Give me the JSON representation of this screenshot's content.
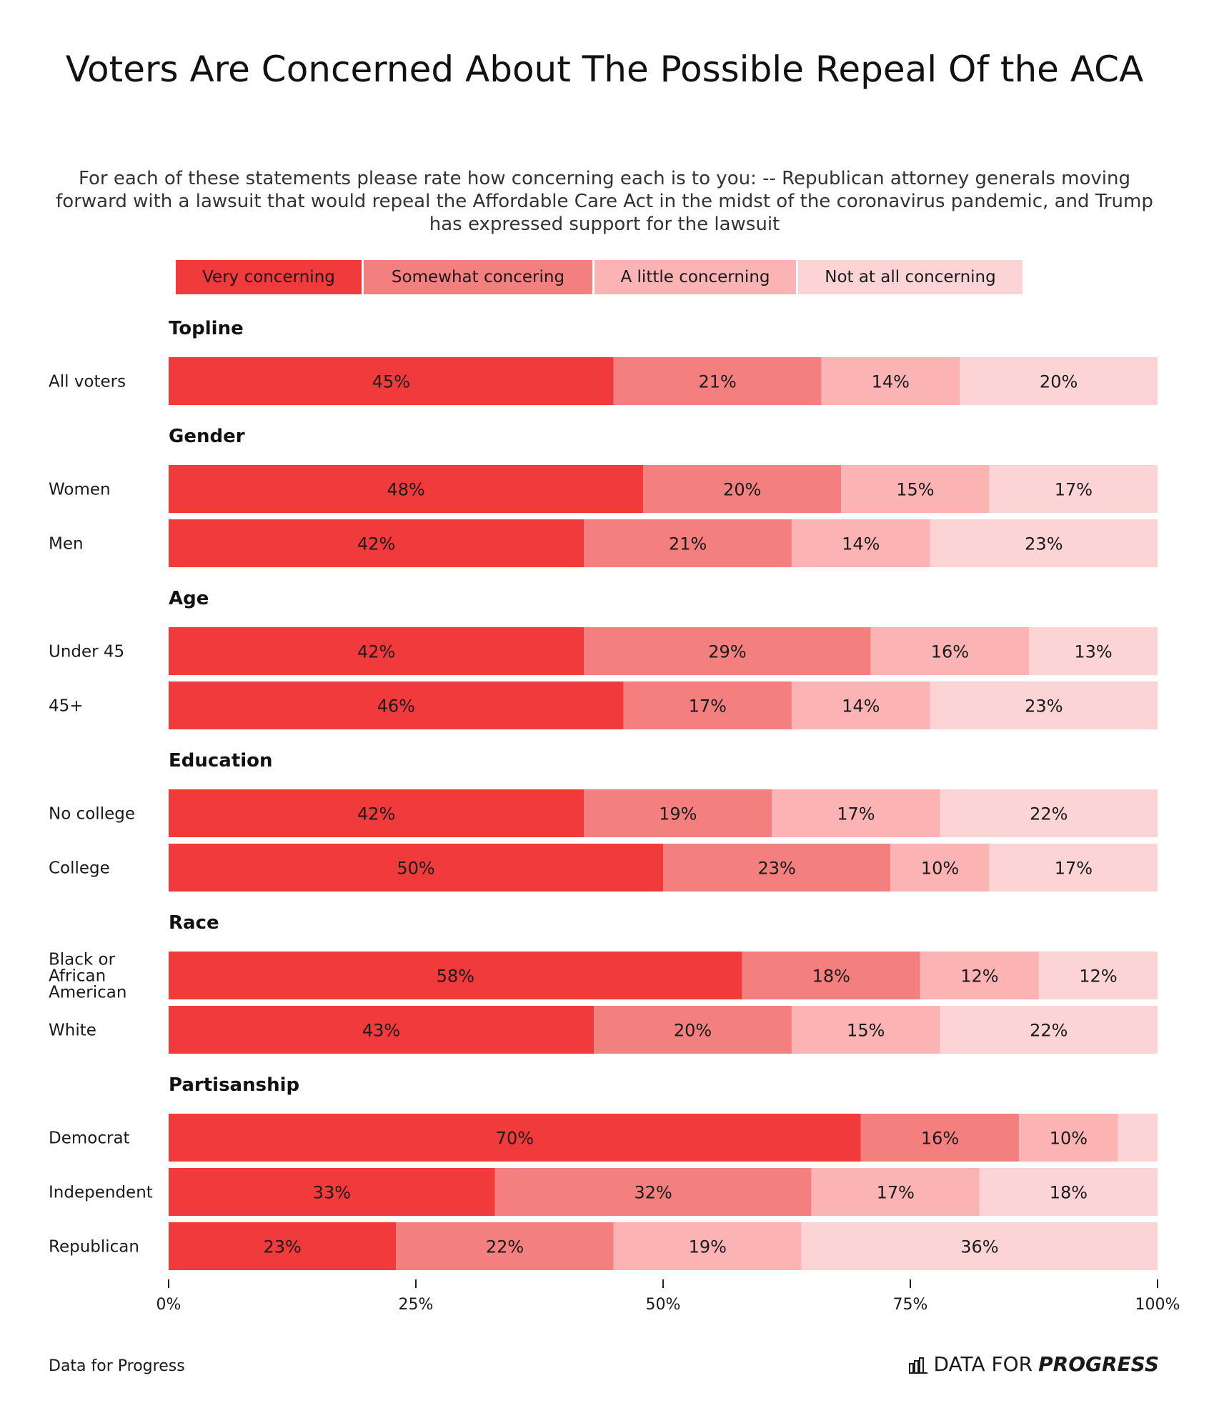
{
  "colors": [
    "#f03a3c",
    "#f47f7f",
    "#fbb3b4",
    "#fdd4d5"
  ],
  "footer": {
    "source": "Data for Progress",
    "brand_regular": "DATA FOR",
    "brand_bold": "PROGRESS",
    "brand_icon": "bar-chart-icon"
  },
  "chart_data": {
    "type": "bar",
    "orientation": "horizontal-stacked-100",
    "title": "Voters Are Concerned About The Possible Repeal Of the ACA",
    "subtitle": "For each of these statements please rate how concerning each is to you: -- Republican attorney generals moving forward with a lawsuit that would repeal the Affordable Care Act in the midst of the coronavirus pandemic, and Trump has expressed support for the lawsuit",
    "legend": [
      "Very concerning",
      "Somewhat concering",
      "A little concerning",
      "Not at all concerning"
    ],
    "legend_position": "top",
    "xlim": [
      0,
      100
    ],
    "xticks": [
      "0%",
      "25%",
      "50%",
      "75%",
      "100%"
    ],
    "groups": [
      {
        "name": "Topline",
        "rows": [
          {
            "label": "All voters",
            "values": [
              45,
              21,
              14,
              20
            ],
            "labels": [
              "45%",
              "21%",
              "14%",
              "20%"
            ]
          }
        ]
      },
      {
        "name": "Gender",
        "rows": [
          {
            "label": "Women",
            "values": [
              48,
              20,
              15,
              17
            ],
            "labels": [
              "48%",
              "20%",
              "15%",
              "17%"
            ]
          },
          {
            "label": "Men",
            "values": [
              42,
              21,
              14,
              23
            ],
            "labels": [
              "42%",
              "21%",
              "14%",
              "23%"
            ]
          }
        ]
      },
      {
        "name": "Age",
        "rows": [
          {
            "label": "Under 45",
            "values": [
              42,
              29,
              16,
              13
            ],
            "labels": [
              "42%",
              "29%",
              "16%",
              "13%"
            ]
          },
          {
            "label": "45+",
            "values": [
              46,
              17,
              14,
              23
            ],
            "labels": [
              "46%",
              "17%",
              "14%",
              "23%"
            ]
          }
        ]
      },
      {
        "name": "Education",
        "rows": [
          {
            "label": "No college",
            "values": [
              42,
              19,
              17,
              22
            ],
            "labels": [
              "42%",
              "19%",
              "17%",
              "22%"
            ]
          },
          {
            "label": "College",
            "values": [
              50,
              23,
              10,
              17
            ],
            "labels": [
              "50%",
              "23%",
              "10%",
              "17%"
            ]
          }
        ]
      },
      {
        "name": "Race",
        "rows": [
          {
            "label": "Black or African American",
            "label_lines": [
              "Black or",
              "African",
              "American"
            ],
            "values": [
              58,
              18,
              12,
              12
            ],
            "labels": [
              "58%",
              "18%",
              "12%",
              "12%"
            ]
          },
          {
            "label": "White",
            "values": [
              43,
              20,
              15,
              22
            ],
            "labels": [
              "43%",
              "20%",
              "15%",
              "22%"
            ]
          }
        ]
      },
      {
        "name": "Partisanship",
        "rows": [
          {
            "label": "Democrat",
            "values": [
              70,
              16,
              10,
              4
            ],
            "labels": [
              "70%",
              "16%",
              "10%",
              ""
            ]
          },
          {
            "label": "Independent",
            "values": [
              33,
              32,
              17,
              18
            ],
            "labels": [
              "33%",
              "32%",
              "17%",
              "18%"
            ]
          },
          {
            "label": "Republican",
            "values": [
              23,
              22,
              19,
              36
            ],
            "labels": [
              "23%",
              "22%",
              "19%",
              "36%"
            ]
          }
        ]
      }
    ]
  }
}
